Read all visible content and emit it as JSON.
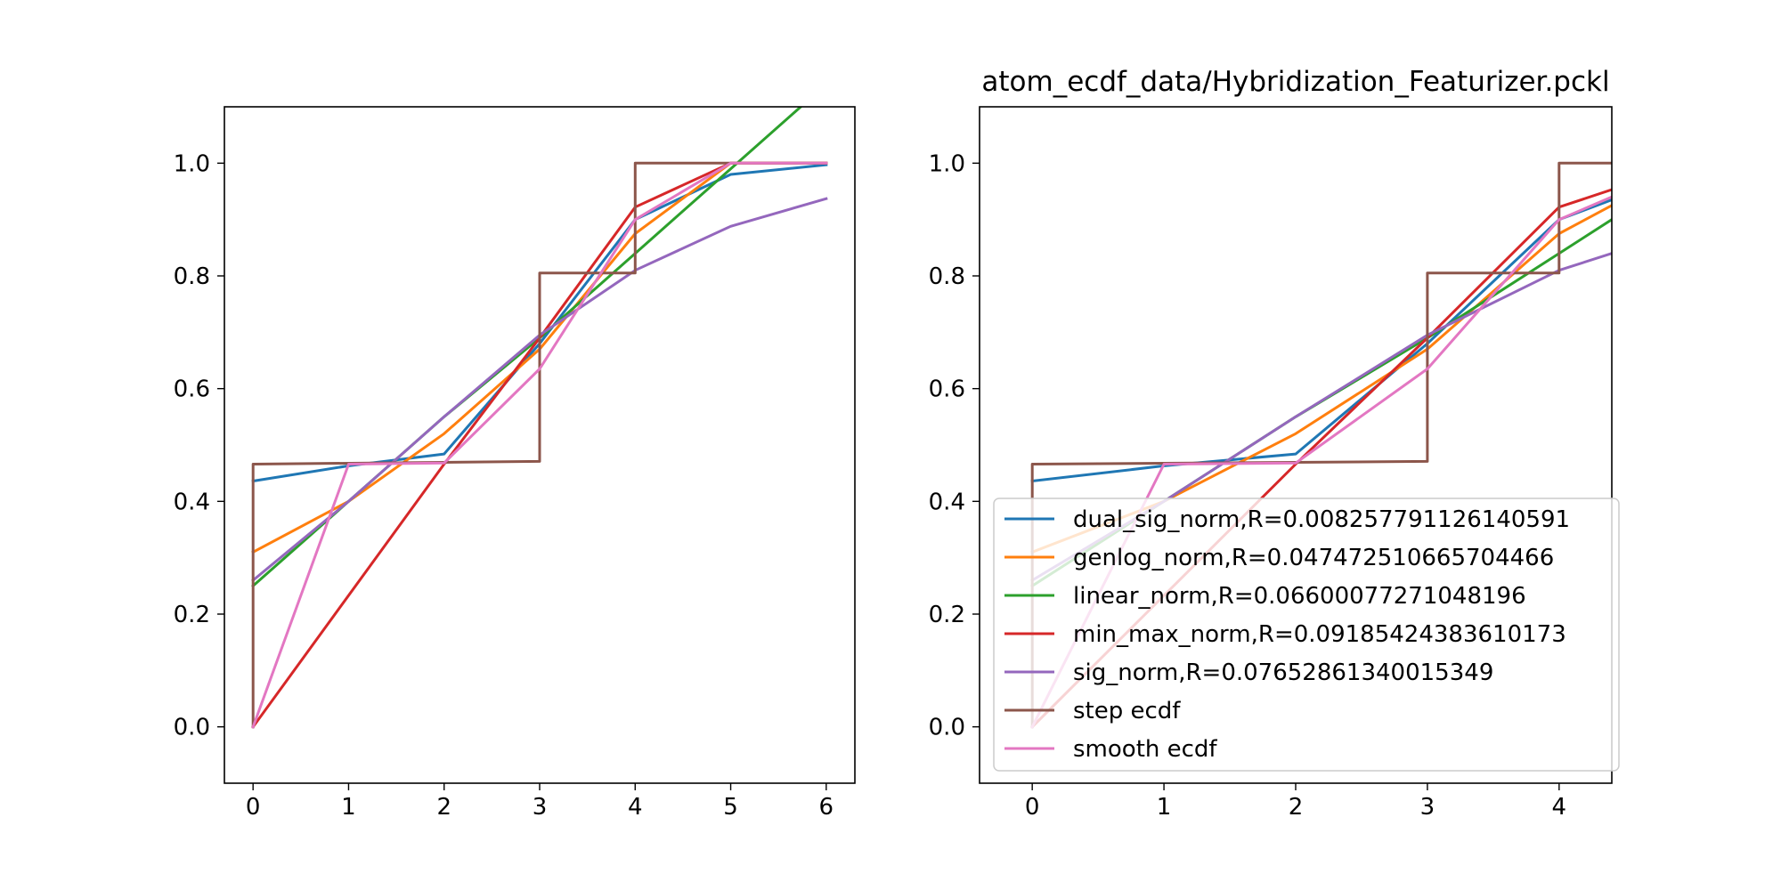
{
  "chart_data": [
    {
      "type": "line",
      "title": "",
      "xlabel": "",
      "ylabel": "",
      "xlim": [
        -0.3,
        6.3
      ],
      "ylim": [
        -0.1,
        1.1
      ],
      "xticks": [
        0,
        1,
        2,
        3,
        4,
        5,
        6
      ],
      "xtick_labels": [
        "0",
        "1",
        "2",
        "3",
        "4",
        "5",
        "6"
      ],
      "yticks": [
        0.0,
        0.2,
        0.4,
        0.6,
        0.8,
        1.0
      ],
      "ytick_labels": [
        "0.0",
        "0.2",
        "0.4",
        "0.6",
        "0.8",
        "1.0"
      ],
      "grid": false,
      "legend": null,
      "series": [
        {
          "key": "dual_sig_norm",
          "color": "#1f77b4",
          "x": [
            0,
            1,
            2,
            3,
            4,
            5,
            6
          ],
          "y": [
            0.436,
            0.463,
            0.484,
            0.68,
            0.9,
            0.98,
            0.997
          ]
        },
        {
          "key": "genlog_norm",
          "color": "#ff7f0e",
          "x": [
            0,
            1,
            2,
            3,
            4,
            5,
            6
          ],
          "y": [
            0.31,
            0.4,
            0.52,
            0.67,
            0.875,
            1.0,
            1.0
          ]
        },
        {
          "key": "linear_norm",
          "color": "#2ca02c",
          "x": [
            0,
            1,
            2,
            3,
            4,
            5,
            6,
            6.3
          ],
          "y": [
            0.25,
            0.4,
            0.55,
            0.69,
            0.84,
            0.99,
            1.14,
            1.185
          ]
        },
        {
          "key": "min_max_norm",
          "color": "#d62728",
          "x": [
            0,
            2,
            3,
            4,
            5,
            6
          ],
          "y": [
            0.0,
            0.466,
            0.69,
            0.922,
            1.0,
            1.0
          ]
        },
        {
          "key": "sig_norm",
          "color": "#9467bd",
          "x": [
            0,
            1,
            2,
            3,
            4,
            5,
            6
          ],
          "y": [
            0.26,
            0.4,
            0.55,
            0.695,
            0.81,
            0.888,
            0.937
          ]
        },
        {
          "key": "step_ecdf",
          "color": "#8c564b",
          "x": [
            0,
            0,
            3,
            3,
            4,
            4,
            6
          ],
          "y": [
            0.0,
            0.466,
            0.471,
            0.805,
            0.805,
            1.0,
            1.0
          ]
        },
        {
          "key": "smooth_ecdf",
          "color": "#e377c2",
          "x": [
            0,
            1,
            2,
            3,
            4,
            5,
            6
          ],
          "y": [
            0.0,
            0.466,
            0.468,
            0.635,
            0.9,
            1.0,
            1.0
          ]
        }
      ]
    },
    {
      "type": "line",
      "title": "atom_ecdf_data/Hybridization_Featurizer.pckl",
      "xlabel": "",
      "ylabel": "",
      "xlim": [
        -0.4,
        4.4
      ],
      "ylim": [
        -0.1,
        1.1
      ],
      "xticks": [
        0,
        1,
        2,
        3,
        4
      ],
      "xtick_labels": [
        "0",
        "1",
        "2",
        "3",
        "4"
      ],
      "yticks": [
        0.0,
        0.2,
        0.4,
        0.6,
        0.8,
        1.0
      ],
      "ytick_labels": [
        "0.0",
        "0.2",
        "0.4",
        "0.6",
        "0.8",
        "1.0"
      ],
      "grid": false,
      "legend": "lower-right",
      "series": [
        {
          "key": "dual_sig_norm",
          "name": "dual_sig_norm,R=0.008257791126140591",
          "color": "#1f77b4",
          "x": [
            0,
            1,
            2,
            3,
            4,
            4.4
          ],
          "y": [
            0.436,
            0.463,
            0.484,
            0.68,
            0.9,
            0.935
          ]
        },
        {
          "key": "genlog_norm",
          "name": "genlog_norm,R=0.047472510665704466",
          "color": "#ff7f0e",
          "x": [
            0,
            1,
            2,
            3,
            4,
            4.4
          ],
          "y": [
            0.31,
            0.4,
            0.52,
            0.67,
            0.875,
            0.925
          ]
        },
        {
          "key": "linear_norm",
          "name": "linear_norm,R=0.06600077271048196",
          "color": "#2ca02c",
          "x": [
            0,
            1,
            2,
            3,
            4,
            4.4
          ],
          "y": [
            0.25,
            0.4,
            0.55,
            0.69,
            0.84,
            0.9
          ]
        },
        {
          "key": "min_max_norm",
          "name": "min_max_norm,R=0.09185424383610173",
          "color": "#d62728",
          "x": [
            0,
            2,
            3,
            4,
            4.4
          ],
          "y": [
            0.0,
            0.466,
            0.69,
            0.922,
            0.953
          ]
        },
        {
          "key": "sig_norm",
          "name": "sig_norm,R=0.07652861340015349",
          "color": "#9467bd",
          "x": [
            0,
            1,
            2,
            3,
            4,
            4.4
          ],
          "y": [
            0.26,
            0.4,
            0.55,
            0.695,
            0.81,
            0.84
          ]
        },
        {
          "key": "step_ecdf",
          "name": "step ecdf",
          "color": "#8c564b",
          "x": [
            0,
            0,
            3,
            3,
            4,
            4,
            4.4
          ],
          "y": [
            0.0,
            0.466,
            0.471,
            0.805,
            0.805,
            1.0,
            1.0
          ]
        },
        {
          "key": "smooth_ecdf",
          "name": "smooth ecdf",
          "color": "#e377c2",
          "x": [
            0,
            1,
            2,
            3,
            4,
            4.4
          ],
          "y": [
            0.0,
            0.466,
            0.468,
            0.635,
            0.9,
            0.94
          ]
        }
      ]
    }
  ]
}
